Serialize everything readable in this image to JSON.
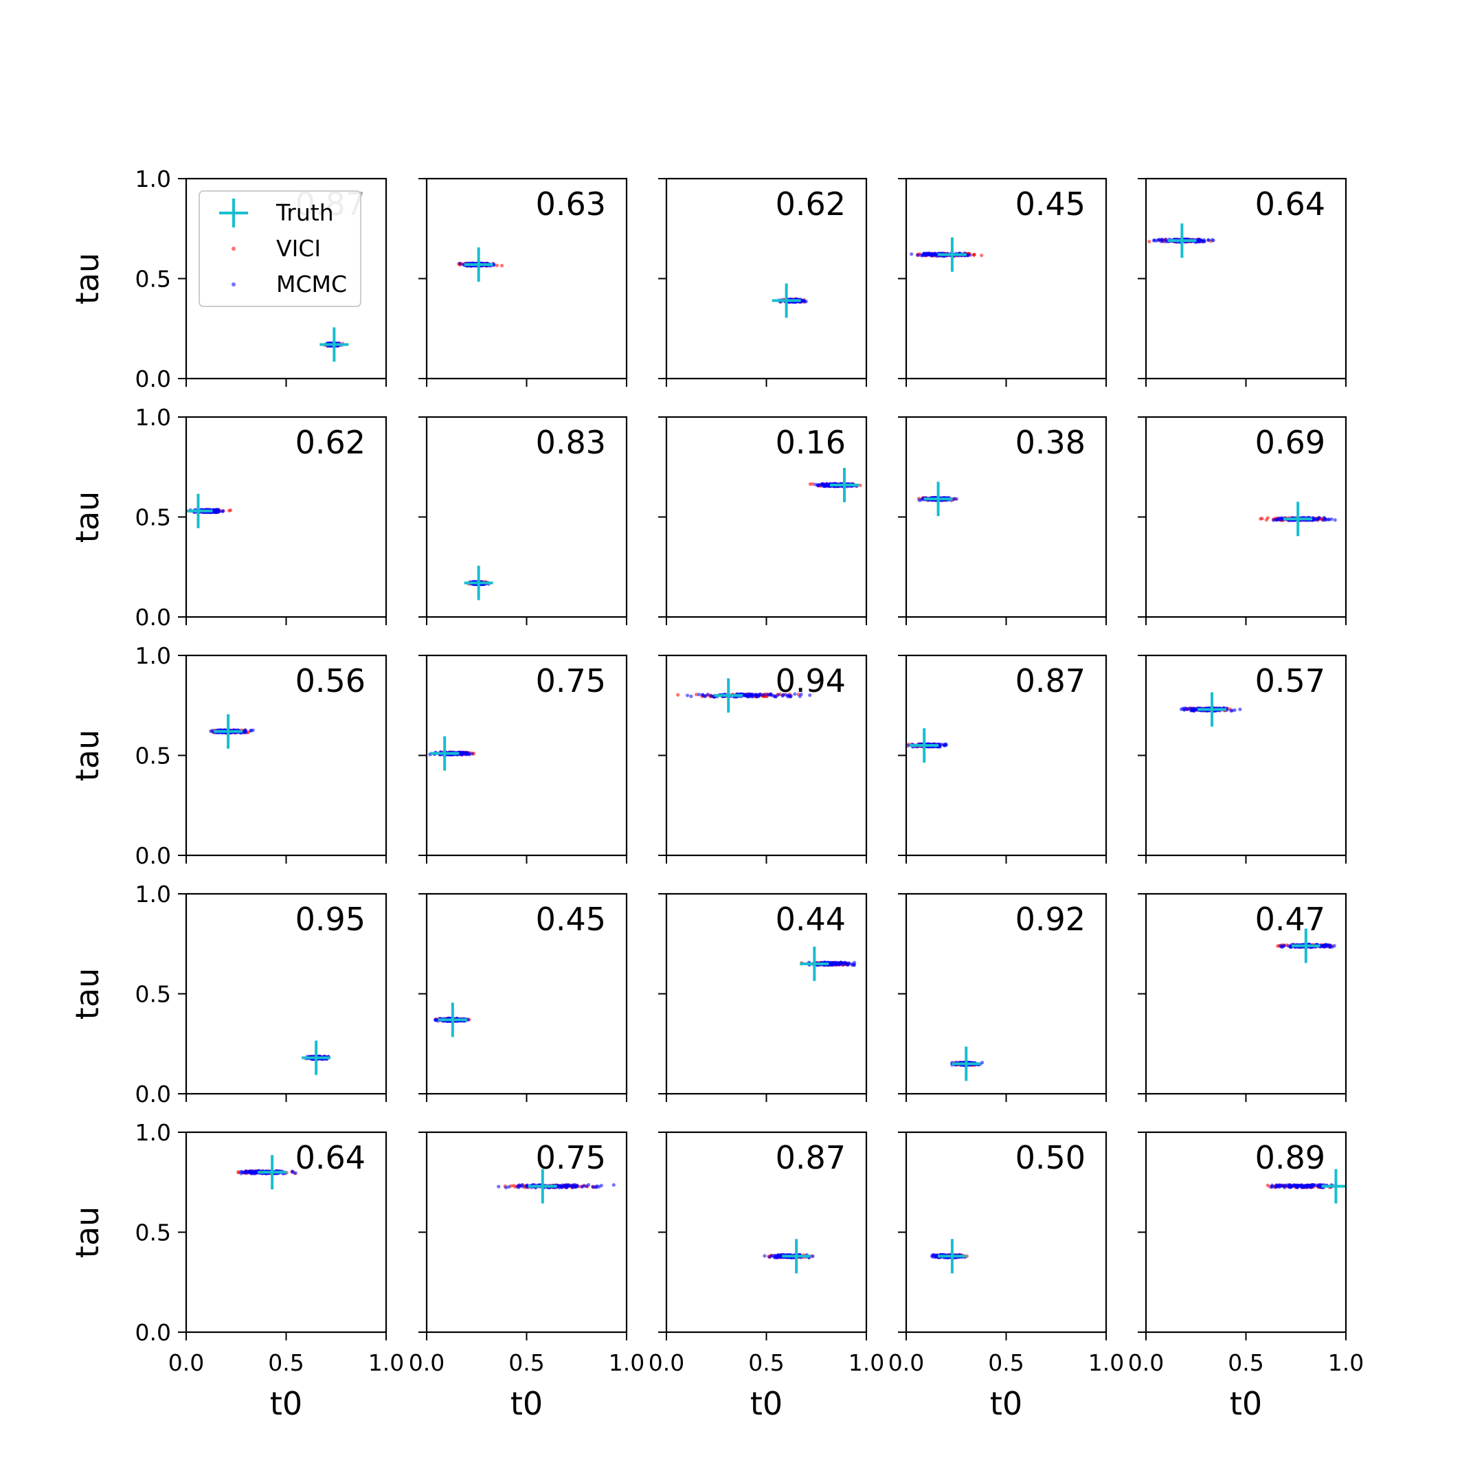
{
  "chart_data": {
    "type": "scatter",
    "layout": "5x5 grid of subplots",
    "xlabel": "t0",
    "ylabel": "tau",
    "xlim": [
      0,
      1
    ],
    "ylim": [
      0,
      1
    ],
    "x_ticks": [
      "0.0",
      "0.5",
      "1.0"
    ],
    "y_ticks": [
      "0.0",
      "0.5",
      "1.0"
    ],
    "grid": false,
    "legend": {
      "placement": "top-left of first panel",
      "entries": [
        {
          "label": "Truth",
          "marker": "plus",
          "color": "#17becf"
        },
        {
          "label": "VICI",
          "marker": "dot",
          "color": "#ff0000"
        },
        {
          "label": "MCMC",
          "marker": "dot",
          "color": "#0000ff"
        }
      ]
    },
    "colors": {
      "truth": "#17becf",
      "vici": "#ff0000",
      "mcmc": "#0000ff"
    },
    "panels": [
      {
        "annotation": "0.87",
        "truth": [
          0.74,
          0.17
        ],
        "vici": [
          0.68,
          0.79,
          0.17
        ],
        "mcmc": [
          0.69,
          0.78,
          0.17
        ]
      },
      {
        "annotation": "0.63",
        "truth": [
          0.26,
          0.57
        ],
        "vici": [
          0.12,
          0.39,
          0.57
        ],
        "mcmc": [
          0.13,
          0.37,
          0.57
        ]
      },
      {
        "annotation": "0.62",
        "truth": [
          0.6,
          0.39
        ],
        "vici": [
          0.56,
          0.71,
          0.39
        ],
        "mcmc": [
          0.55,
          0.71,
          0.39
        ]
      },
      {
        "annotation": "0.45",
        "truth": [
          0.23,
          0.62
        ],
        "vici": [
          0.0,
          0.42,
          0.62
        ],
        "mcmc": [
          0.0,
          0.38,
          0.62
        ]
      },
      {
        "annotation": "0.64",
        "truth": [
          0.18,
          0.69
        ],
        "vici": [
          0.0,
          0.36,
          0.69
        ],
        "mcmc": [
          0.0,
          0.37,
          0.69
        ]
      },
      {
        "annotation": "0.62",
        "truth": [
          0.06,
          0.53
        ],
        "vici": [
          0.0,
          0.24,
          0.53
        ],
        "mcmc": [
          0.0,
          0.22,
          0.53
        ]
      },
      {
        "annotation": "0.83",
        "truth": [
          0.26,
          0.17
        ],
        "vici": [
          0.19,
          0.33,
          0.17
        ],
        "mcmc": [
          0.19,
          0.32,
          0.17
        ]
      },
      {
        "annotation": "0.16",
        "truth": [
          0.89,
          0.66
        ],
        "vici": [
          0.7,
          0.99,
          0.66
        ],
        "mcmc": [
          0.7,
          1.0,
          0.66
        ]
      },
      {
        "annotation": "0.38",
        "truth": [
          0.16,
          0.59
        ],
        "vici": [
          0.04,
          0.27,
          0.59
        ],
        "mcmc": [
          0.04,
          0.27,
          0.59
        ]
      },
      {
        "annotation": "0.69",
        "truth": [
          0.76,
          0.49
        ],
        "vici": [
          0.55,
          0.97,
          0.49
        ],
        "mcmc": [
          0.58,
          0.99,
          0.49
        ]
      },
      {
        "annotation": "0.56",
        "truth": [
          0.21,
          0.62
        ],
        "vici": [
          0.1,
          0.35,
          0.62
        ],
        "mcmc": [
          0.09,
          0.35,
          0.62
        ]
      },
      {
        "annotation": "0.75",
        "truth": [
          0.09,
          0.51
        ],
        "vici": [
          0.01,
          0.27,
          0.51
        ],
        "mcmc": [
          0.0,
          0.25,
          0.51
        ]
      },
      {
        "annotation": "0.94",
        "truth": [
          0.31,
          0.8
        ],
        "vici": [
          0.0,
          0.76,
          0.8
        ],
        "mcmc": [
          0.0,
          0.81,
          0.8
        ]
      },
      {
        "annotation": "0.87",
        "truth": [
          0.09,
          0.55
        ],
        "vici": [
          0.0,
          0.2,
          0.55
        ],
        "mcmc": [
          0.0,
          0.22,
          0.55
        ]
      },
      {
        "annotation": "0.57",
        "truth": [
          0.33,
          0.73
        ],
        "vici": [
          0.13,
          0.5,
          0.73
        ],
        "mcmc": [
          0.13,
          0.49,
          0.73
        ]
      },
      {
        "annotation": "0.95",
        "truth": [
          0.65,
          0.18
        ],
        "vici": [
          0.58,
          0.72,
          0.18
        ],
        "mcmc": [
          0.59,
          0.72,
          0.18
        ]
      },
      {
        "annotation": "0.45",
        "truth": [
          0.13,
          0.37
        ],
        "vici": [
          0.03,
          0.23,
          0.37
        ],
        "mcmc": [
          0.03,
          0.23,
          0.37
        ]
      },
      {
        "annotation": "0.44",
        "truth": [
          0.74,
          0.65
        ],
        "vici": [
          0.65,
          0.97,
          0.65
        ],
        "mcmc": [
          0.66,
          0.98,
          0.65
        ]
      },
      {
        "annotation": "0.92",
        "truth": [
          0.3,
          0.15
        ],
        "vici": [
          0.22,
          0.39,
          0.15
        ],
        "mcmc": [
          0.22,
          0.39,
          0.15
        ]
      },
      {
        "annotation": "0.47",
        "truth": [
          0.8,
          0.74
        ],
        "vici": [
          0.62,
          1.0,
          0.74
        ],
        "mcmc": [
          0.64,
          1.0,
          0.74
        ]
      },
      {
        "annotation": "0.64",
        "truth": [
          0.43,
          0.8
        ],
        "vici": [
          0.19,
          0.57,
          0.8
        ],
        "mcmc": [
          0.23,
          0.57,
          0.8
        ]
      },
      {
        "annotation": "0.75",
        "truth": [
          0.58,
          0.73
        ],
        "vici": [
          0.29,
          0.95,
          0.73
        ],
        "mcmc": [
          0.29,
          0.97,
          0.73
        ]
      },
      {
        "annotation": "0.87",
        "truth": [
          0.65,
          0.38
        ],
        "vici": [
          0.49,
          0.75,
          0.38
        ],
        "mcmc": [
          0.47,
          0.74,
          0.38
        ]
      },
      {
        "annotation": "0.50",
        "truth": [
          0.23,
          0.38
        ],
        "vici": [
          0.12,
          0.33,
          0.38
        ],
        "mcmc": [
          0.11,
          0.31,
          0.38
        ]
      },
      {
        "annotation": "0.89",
        "truth": [
          0.95,
          0.73
        ],
        "vici": [
          0.54,
          1.0,
          0.73
        ],
        "mcmc": [
          0.55,
          1.0,
          0.73
        ]
      }
    ]
  }
}
